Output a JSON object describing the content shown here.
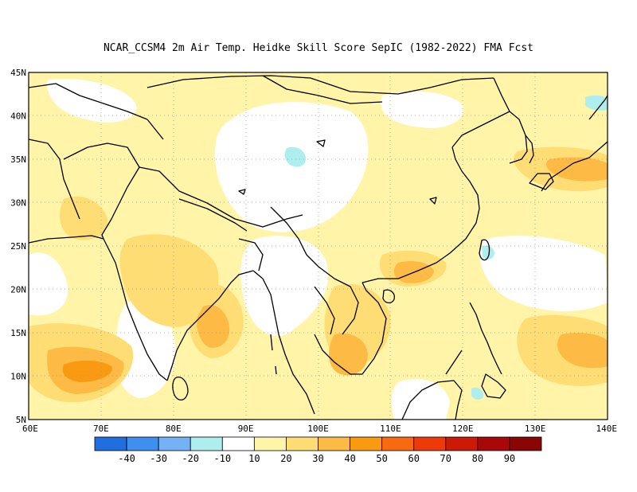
{
  "title": "NCAR_CCSM4  2m Air Temp. Heidke Skill Score SepIC (1982-2022) FMA Fcst",
  "map": {
    "lon_range": [
      60,
      140
    ],
    "lat_range": [
      5,
      45
    ],
    "lon_ticks": [
      "60E",
      "70E",
      "80E",
      "90E",
      "100E",
      "110E",
      "120E",
      "130E",
      "140E"
    ],
    "lat_ticks": [
      "5N",
      "10N",
      "15N",
      "20N",
      "25N",
      "30N",
      "35N",
      "40N",
      "45N"
    ],
    "grid": "dotted"
  },
  "colorbar": {
    "colors": [
      "#1f6fe0",
      "#3f8ff0",
      "#74b2f5",
      "#aeeeee",
      "#ffffff",
      "#fff4a8",
      "#ffdd75",
      "#fdbb45",
      "#f99a10",
      "#f76a10",
      "#ec3a08",
      "#cc1a08",
      "#a80808",
      "#8a0505"
    ],
    "labels": [
      "-40",
      "-30",
      "-20",
      "-10",
      "10",
      "20",
      "30",
      "40",
      "50",
      "60",
      "70",
      "80",
      "90"
    ]
  },
  "regions": {
    "arabian_sea_max": "#f99a10",
    "bay_of_bengal": "#fdbb45",
    "background": "#fff4a8",
    "minor_negative": "#aeeeee"
  }
}
